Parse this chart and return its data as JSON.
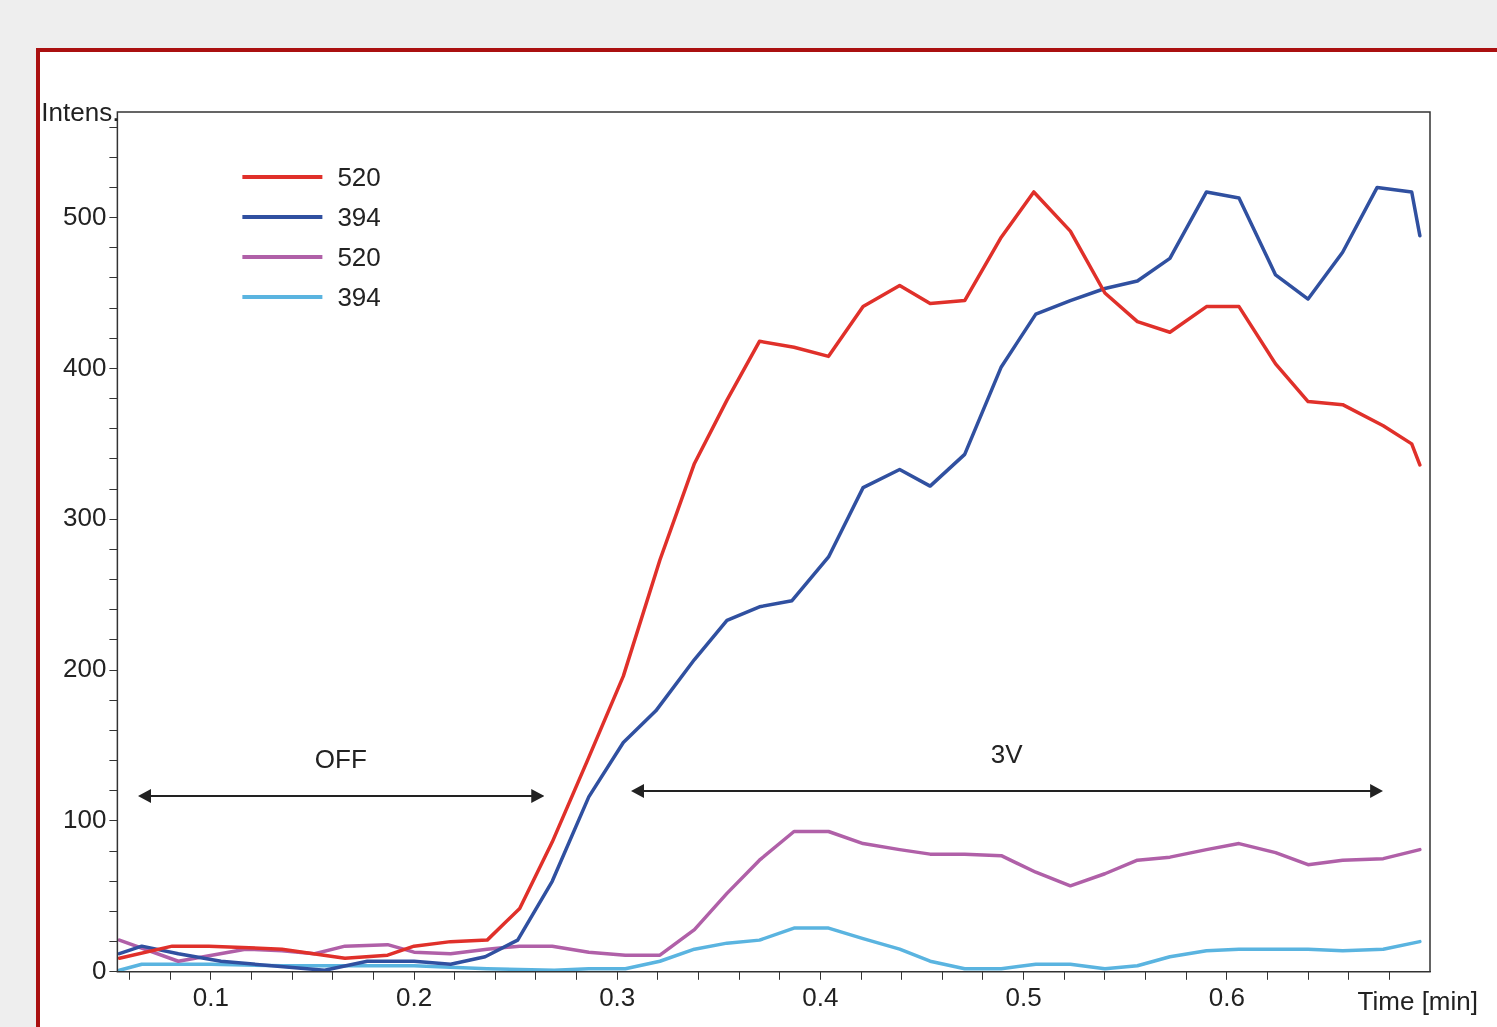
{
  "chart_data": {
    "type": "line",
    "xlabel": "Time [min]",
    "ylabel": "Intens.",
    "xlim": [
      0.054,
      0.7
    ],
    "xticks": [
      {
        "value": 0.06,
        "label": null
      },
      {
        "value": 0.08,
        "label": null
      },
      0.1,
      {
        "value": 0.12,
        "label": null
      },
      {
        "value": 0.14,
        "label": null
      },
      {
        "value": 0.16,
        "label": null
      },
      {
        "value": 0.18,
        "label": null
      },
      0.2,
      {
        "value": 0.22,
        "label": null
      },
      {
        "value": 0.24,
        "label": null
      },
      {
        "value": 0.26,
        "label": null
      },
      {
        "value": 0.28,
        "label": null
      },
      0.3,
      {
        "value": 0.32,
        "label": null
      },
      {
        "value": 0.34,
        "label": null
      },
      {
        "value": 0.36,
        "label": null
      },
      {
        "value": 0.38,
        "label": null
      },
      0.4,
      {
        "value": 0.42,
        "label": null
      },
      {
        "value": 0.44,
        "label": null
      },
      {
        "value": 0.46,
        "label": null
      },
      {
        "value": 0.48,
        "label": null
      },
      0.5,
      {
        "value": 0.52,
        "label": null
      },
      {
        "value": 0.54,
        "label": null
      },
      {
        "value": 0.56,
        "label": null
      },
      {
        "value": 0.58,
        "label": null
      },
      0.6,
      {
        "value": 0.62,
        "label": null
      },
      {
        "value": 0.64,
        "label": null
      },
      {
        "value": 0.66,
        "label": null
      },
      {
        "value": 0.68,
        "label": null
      }
    ],
    "ylim": [
      0,
      570
    ],
    "yticks": [
      0,
      {
        "value": 20,
        "label": null
      },
      {
        "value": 40,
        "label": null
      },
      {
        "value": 60,
        "label": null
      },
      {
        "value": 80,
        "label": null
      },
      100,
      {
        "value": 120,
        "label": null
      },
      {
        "value": 140,
        "label": null
      },
      {
        "value": 160,
        "label": null
      },
      {
        "value": 180,
        "label": null
      },
      200,
      {
        "value": 220,
        "label": null
      },
      {
        "value": 240,
        "label": null
      },
      {
        "value": 260,
        "label": null
      },
      {
        "value": 280,
        "label": null
      },
      300,
      {
        "value": 320,
        "label": null
      },
      {
        "value": 340,
        "label": null
      },
      {
        "value": 360,
        "label": null
      },
      {
        "value": 380,
        "label": null
      },
      400,
      {
        "value": 420,
        "label": null
      },
      {
        "value": 440,
        "label": null
      },
      {
        "value": 460,
        "label": null
      },
      {
        "value": 480,
        "label": null
      },
      500,
      {
        "value": 520,
        "label": null
      },
      {
        "value": 540,
        "label": null
      },
      {
        "value": 560,
        "label": null
      }
    ],
    "legend": "top left",
    "grid": false,
    "marker": "none",
    "line_style": "solid",
    "annotations": [
      "OFF",
      "3V"
    ],
    "series": [
      {
        "name": "520",
        "color": "#e0302a",
        "x": [
          0.055,
          0.081,
          0.099,
          0.135,
          0.166,
          0.187,
          0.2,
          0.218,
          0.236,
          0.252,
          0.268,
          0.285,
          0.303,
          0.321,
          0.338,
          0.354,
          0.37,
          0.387,
          0.404,
          0.421,
          0.439,
          0.454,
          0.471,
          0.489,
          0.505,
          0.523,
          0.54,
          0.556,
          0.572,
          0.59,
          0.606,
          0.624,
          0.64,
          0.657,
          0.677,
          0.691,
          0.695
        ],
        "values": [
          9,
          17,
          17,
          15,
          9,
          11,
          17,
          20,
          21,
          42,
          86,
          139,
          196,
          273,
          337,
          379,
          418,
          414,
          408,
          441,
          455,
          443,
          445,
          487,
          517,
          491,
          450,
          431,
          424,
          441,
          441,
          403,
          378,
          376,
          362,
          350,
          336
        ]
      },
      {
        "name": "394",
        "color": "#3050a0",
        "x": [
          0.055,
          0.066,
          0.084,
          0.105,
          0.13,
          0.156,
          0.177,
          0.2,
          0.218,
          0.235,
          0.251,
          0.268,
          0.286,
          0.303,
          0.319,
          0.338,
          0.354,
          0.37,
          0.386,
          0.404,
          0.421,
          0.439,
          0.454,
          0.471,
          0.489,
          0.506,
          0.523,
          0.54,
          0.556,
          0.572,
          0.59,
          0.606,
          0.624,
          0.64,
          0.657,
          0.674,
          0.691,
          0.695
        ],
        "values": [
          12,
          17,
          12,
          7,
          4,
          1,
          7,
          7,
          5,
          10,
          21,
          60,
          116,
          152,
          173,
          207,
          233,
          242,
          246,
          275,
          321,
          333,
          322,
          343,
          401,
          436,
          445,
          453,
          458,
          473,
          517,
          513,
          462,
          446,
          477,
          520,
          517,
          488
        ]
      },
      {
        "name": "520",
        "color": "#b060a8",
        "x": [
          0.055,
          0.084,
          0.117,
          0.135,
          0.151,
          0.166,
          0.187,
          0.2,
          0.218,
          0.236,
          0.252,
          0.268,
          0.286,
          0.304,
          0.321,
          0.338,
          0.354,
          0.37,
          0.387,
          0.404,
          0.421,
          0.439,
          0.454,
          0.471,
          0.489,
          0.506,
          0.523,
          0.54,
          0.556,
          0.572,
          0.59,
          0.606,
          0.624,
          0.64,
          0.657,
          0.677,
          0.695
        ],
        "values": [
          21,
          7,
          15,
          14,
          12,
          17,
          18,
          13,
          12,
          15,
          17,
          17,
          13,
          11,
          11,
          28,
          52,
          74,
          93,
          93,
          85,
          81,
          78,
          78,
          77,
          66,
          57,
          65,
          74,
          76,
          81,
          85,
          79,
          71,
          74,
          75,
          81
        ]
      },
      {
        "name": "394",
        "color": "#5ab4e0",
        "x": [
          0.055,
          0.066,
          0.1,
          0.135,
          0.166,
          0.2,
          0.236,
          0.269,
          0.286,
          0.304,
          0.321,
          0.338,
          0.354,
          0.37,
          0.387,
          0.404,
          0.421,
          0.439,
          0.454,
          0.471,
          0.489,
          0.506,
          0.523,
          0.54,
          0.556,
          0.572,
          0.59,
          0.606,
          0.624,
          0.64,
          0.657,
          0.677,
          0.695
        ],
        "values": [
          1,
          5,
          5,
          4,
          4,
          4,
          2,
          1,
          2,
          2,
          7,
          15,
          19,
          21,
          29,
          29,
          22,
          15,
          7,
          2,
          2,
          5,
          5,
          2,
          4,
          10,
          14,
          15,
          15,
          15,
          14,
          15,
          20
        ]
      }
    ]
  }
}
